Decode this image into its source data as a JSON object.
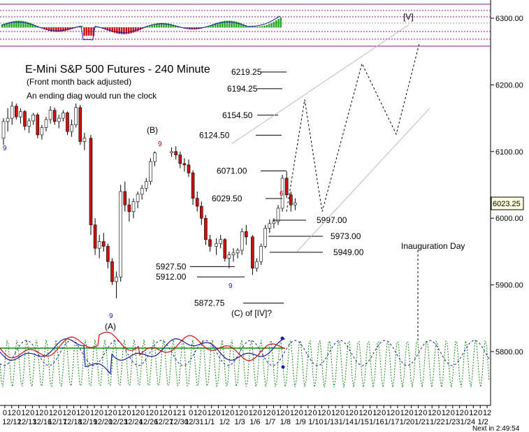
{
  "chart_data": {
    "type": "candlestick",
    "title": "E-Mini S&P 500 Futures - 240 Minute",
    "notes": [
      "(Front month back adjusted)",
      "An ending diag would run the clock"
    ],
    "ylim": [
      5725,
      6325
    ],
    "y_ticks": [
      {
        "value": 5800,
        "label": "5800.00"
      },
      {
        "value": 5900,
        "label": "5900.00"
      },
      {
        "value": 6000,
        "label": "6000.00"
      },
      {
        "value": 6100,
        "label": "6100.00"
      },
      {
        "value": 6200,
        "label": "6200.00"
      },
      {
        "value": 6300,
        "label": "6300.00"
      }
    ],
    "last_price": {
      "value": 6023.25,
      "label": "6023.25"
    },
    "levels": [
      {
        "value": 6219.25,
        "label": "6219.25"
      },
      {
        "value": 6194.25,
        "label": "6194.25"
      },
      {
        "value": 6154.5,
        "label": "6154.50"
      },
      {
        "value": 6124.5,
        "label": "6124.50"
      },
      {
        "value": 6071.0,
        "label": "6071.00"
      },
      {
        "value": 6029.5,
        "label": "6029.50"
      },
      {
        "value": 5997.0,
        "label": "5997.00"
      },
      {
        "value": 5973.0,
        "label": "5973.00"
      },
      {
        "value": 5949.0,
        "label": "5949.00"
      },
      {
        "value": 5927.5,
        "label": "5927.50"
      },
      {
        "value": 5912.0,
        "label": "5912.00"
      },
      {
        "value": 5872.75,
        "label": "5872.75"
      }
    ],
    "wave_labels": [
      "(A)",
      "(B)",
      "(C) of [IV]?",
      "[V]"
    ],
    "annotations": [
      "Inauguration Day"
    ],
    "counts": [
      "9",
      "9",
      "9",
      "9",
      "6"
    ],
    "x_hour_labels": [
      "0",
      "12",
      "0",
      "12",
      "0",
      "12",
      "0",
      "12",
      "0",
      "12",
      "0",
      "12",
      "0",
      "12",
      "0",
      "12",
      "0",
      "12",
      "0",
      "12",
      "0",
      "12",
      "0",
      "12",
      "0",
      "12",
      "1",
      "0",
      "12",
      "0",
      "12",
      "0",
      "12",
      "0",
      "12",
      "0",
      "12",
      "0",
      "12",
      "0",
      "12",
      "0",
      "12",
      "0",
      "12",
      "0",
      "12",
      "0",
      "12",
      "0",
      "12",
      "0",
      "12",
      "0",
      "12",
      "0",
      "12",
      "0",
      "12",
      "0",
      "12",
      "0",
      "12",
      "0",
      "12",
      "0",
      "12",
      "0",
      "12",
      "0",
      "12"
    ],
    "x_date_labels": [
      "12/12",
      "12/13",
      "12/16",
      "12/17",
      "12/18",
      "12/19",
      "12/20",
      "12/23",
      "12/24",
      "12/26",
      "12/27",
      "12/30",
      "12/31",
      "1/1",
      "1/2",
      "1/3",
      "1/6",
      "1/7",
      "1/8",
      "1/9",
      "1/10",
      "1/13",
      "1/14",
      "1/15",
      "1/16",
      "1/17",
      "1/20",
      "1/21",
      "1/22",
      "1/23",
      "1/24",
      "1/2"
    ],
    "status": "Next in 2:49:54",
    "colors": {
      "up": "#ffffff",
      "down": "#cc1111",
      "indicator_up": "#22aa22",
      "indicator_down": "#cc1111",
      "cycle_green": "#118811",
      "cycle_blue": "#1a1aa8"
    }
  }
}
